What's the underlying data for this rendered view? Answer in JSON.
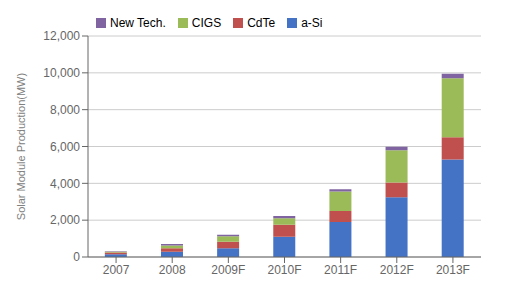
{
  "chart_data": {
    "type": "bar",
    "stacked": true,
    "categories": [
      "2007",
      "2008",
      "2009F",
      "2010F",
      "2011F",
      "2012F",
      "2013F"
    ],
    "series": [
      {
        "name": "a-Si",
        "color": "#4472C4",
        "values": [
          150,
          280,
          480,
          1100,
          1900,
          3250,
          5300
        ]
      },
      {
        "name": "CdTe",
        "color": "#C0504D",
        "values": [
          100,
          200,
          350,
          650,
          600,
          800,
          1200
        ]
      },
      {
        "name": "CIGS",
        "color": "#9BBB59",
        "values": [
          30,
          150,
          300,
          350,
          1050,
          1750,
          3200
        ]
      },
      {
        "name": "New Tech.",
        "color": "#8064A2",
        "values": [
          30,
          80,
          80,
          130,
          130,
          180,
          250
        ]
      }
    ],
    "ylabel": "Solar Module Production(MW)",
    "ylim": [
      0,
      12000
    ],
    "yticks": [
      0,
      {
        "value": 2000,
        "label": "2,000"
      },
      {
        "value": 4000,
        "label": "4,000"
      },
      {
        "value": 6000,
        "label": "6,000"
      },
      {
        "value": 8000,
        "label": "8,000"
      },
      {
        "value": 10000,
        "label": "10,000"
      },
      {
        "value": 12000,
        "label": "12,000"
      }
    ],
    "grid": true,
    "legend": "upper left"
  }
}
